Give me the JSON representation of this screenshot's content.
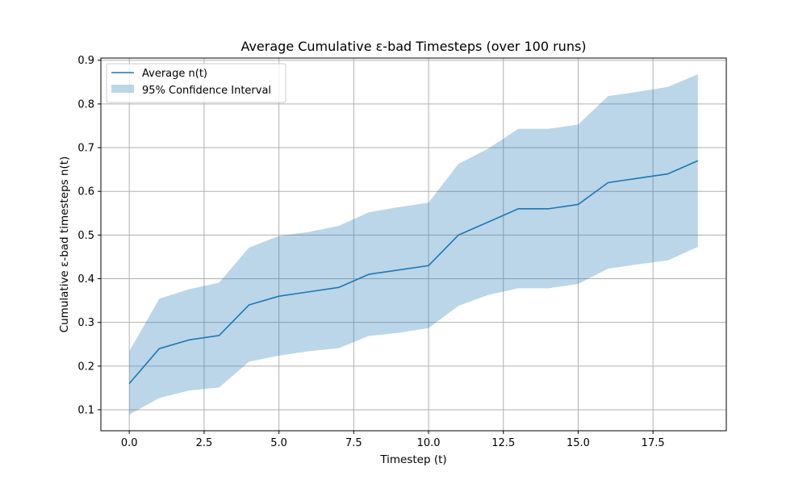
{
  "chart_data": {
    "type": "line",
    "title": "Average Cumulative ε-bad Timesteps (over 100 runs)",
    "xlabel": "Timestep (t)",
    "ylabel": "Cumulative ε-bad timesteps n(t)",
    "xlim": [
      -0.95,
      19.95
    ],
    "ylim": [
      0.052,
      0.905
    ],
    "xticks": [
      0.0,
      2.5,
      5.0,
      7.5,
      10.0,
      12.5,
      15.0,
      17.5
    ],
    "xtick_labels": [
      "0.0",
      "2.5",
      "5.0",
      "7.5",
      "10.0",
      "12.5",
      "15.0",
      "17.5"
    ],
    "yticks": [
      0.1,
      0.2,
      0.3,
      0.4,
      0.5,
      0.6,
      0.7,
      0.8,
      0.9
    ],
    "ytick_labels": [
      "0.1",
      "0.2",
      "0.3",
      "0.4",
      "0.5",
      "0.6",
      "0.7",
      "0.8",
      "0.9"
    ],
    "grid": true,
    "legend_position": "upper-left",
    "x": [
      0,
      1,
      2,
      3,
      4,
      5,
      6,
      7,
      8,
      9,
      10,
      11,
      12,
      13,
      14,
      15,
      16,
      17,
      18,
      19
    ],
    "series": [
      {
        "name": "Average n(t)",
        "values": [
          0.16,
          0.24,
          0.26,
          0.27,
          0.34,
          0.36,
          0.37,
          0.38,
          0.41,
          0.42,
          0.43,
          0.5,
          0.53,
          0.56,
          0.56,
          0.57,
          0.62,
          0.63,
          0.64,
          0.67
        ],
        "color": "#1f77b4"
      }
    ],
    "band": {
      "name": "95% Confidence Interval",
      "lower": [
        0.089,
        0.127,
        0.144,
        0.151,
        0.21,
        0.224,
        0.234,
        0.241,
        0.269,
        0.276,
        0.287,
        0.338,
        0.363,
        0.378,
        0.378,
        0.388,
        0.423,
        0.433,
        0.442,
        0.473
      ],
      "upper": [
        0.234,
        0.354,
        0.376,
        0.391,
        0.471,
        0.498,
        0.507,
        0.521,
        0.552,
        0.564,
        0.574,
        0.663,
        0.698,
        0.743,
        0.743,
        0.753,
        0.818,
        0.828,
        0.839,
        0.868
      ],
      "color": "#1f77b4"
    }
  }
}
